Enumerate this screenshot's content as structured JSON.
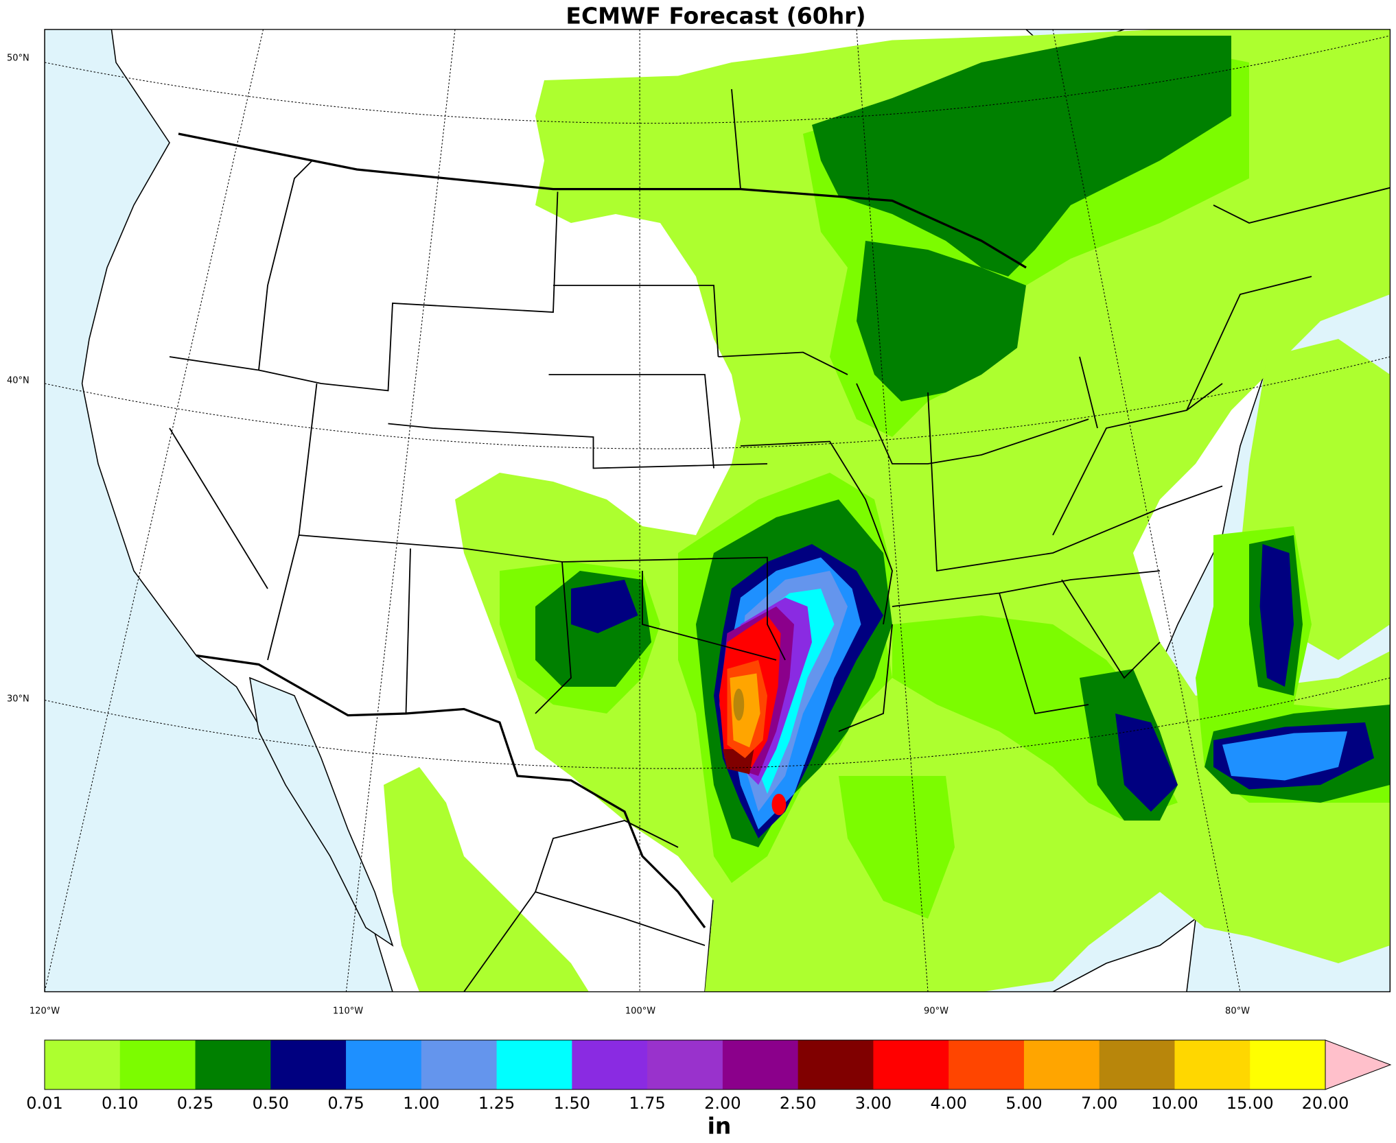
{
  "title": "ECMWF Forecast (60hr)",
  "lat_labels": [
    "50°N",
    "40°N",
    "30°N"
  ],
  "lon_labels": [
    "120°W",
    "110°W",
    "100°W",
    "90°W",
    "80°W"
  ],
  "colorbar": {
    "labels": [
      "0.01",
      "0.10",
      "0.25",
      "0.50",
      "0.75",
      "1.00",
      "1.25",
      "1.50",
      "1.75",
      "2.00",
      "2.50",
      "3.00",
      "4.00",
      "5.00",
      "7.00",
      "10.00",
      "15.00",
      "20.00"
    ],
    "colors": [
      "#adff2f",
      "#7cfc00",
      "#008000",
      "#000080",
      "#1e90ff",
      "#6495ed",
      "#00ffff",
      "#8a2be2",
      "#9932cc",
      "#8b008b",
      "#800000",
      "#ff0000",
      "#ff4500",
      "#ffa500",
      "#b8860b",
      "#ffd700",
      "#ffff00"
    ],
    "extend_color": "#ffc0cb",
    "unit": "in"
  }
}
